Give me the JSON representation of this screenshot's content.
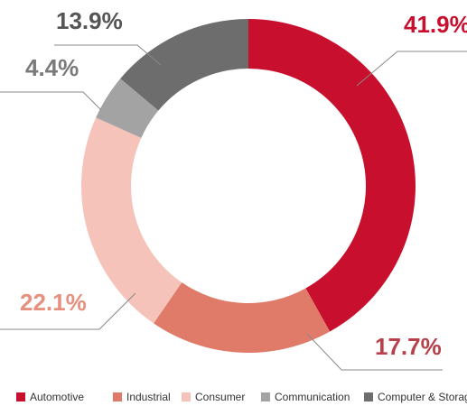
{
  "chart_data": {
    "type": "donut",
    "categories": [
      "Automotive",
      "Industrial",
      "Consumer",
      "Communication",
      "Computer & Storage"
    ],
    "values": [
      41.9,
      17.7,
      22.1,
      4.4,
      13.9
    ],
    "value_labels": [
      "41.9%",
      "17.7%",
      "22.1%",
      "4.4%",
      "13.9%"
    ],
    "colors": [
      "#c8102e",
      "#e07b6a",
      "#f5c3b9",
      "#a3a3a3",
      "#6d6d6d"
    ],
    "label_colors": [
      "#c8102e",
      "#b8404a",
      "#e8907f",
      "#7a7a7a",
      "#555555"
    ]
  }
}
